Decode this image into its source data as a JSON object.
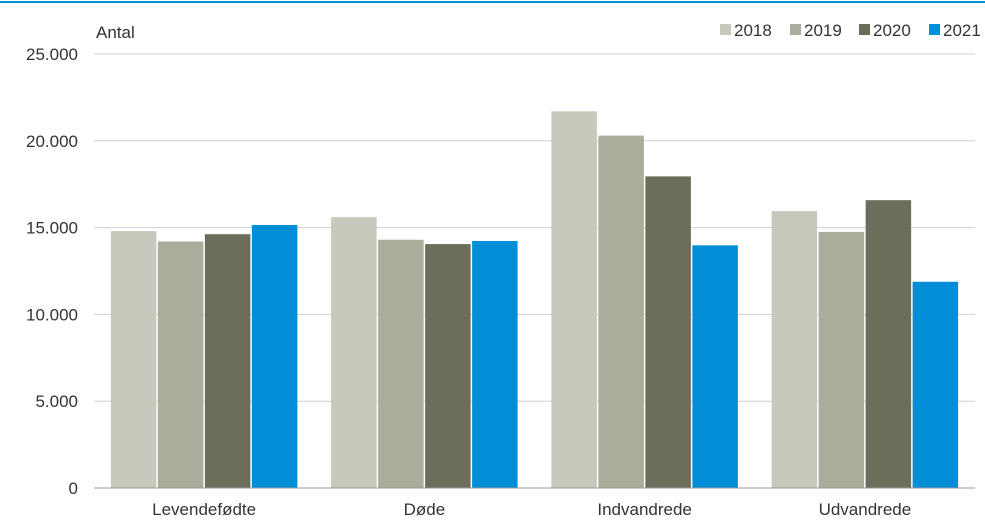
{
  "chart_data": {
    "type": "bar",
    "ylabel": "Antal",
    "categories": [
      "Levendefødte",
      "Døde",
      "Indvandrede",
      "Udvandrede"
    ],
    "series": [
      {
        "name": "2018",
        "color": "#c8c8bc",
        "values": [
          14800,
          15600,
          21700,
          15950
        ]
      },
      {
        "name": "2019",
        "color": "#acac9c",
        "values": [
          14200,
          14300,
          20300,
          14750
        ]
      },
      {
        "name": "2020",
        "color": "#6d6d5b",
        "values": [
          14620,
          14050,
          17950,
          16580
        ]
      },
      {
        "name": "2021",
        "color": "#008fd6",
        "values": [
          15150,
          14230,
          13980,
          11880
        ]
      }
    ],
    "ylim": [
      0,
      25000
    ],
    "yticks": [
      0,
      5000,
      10000,
      15000,
      20000,
      25000
    ],
    "ytick_labels": [
      "0",
      "5.000",
      "10.000",
      "15.000",
      "20.000",
      "25.000"
    ],
    "grid": true,
    "legend_position": "top-right",
    "accent_line_color": "#0096d6"
  }
}
